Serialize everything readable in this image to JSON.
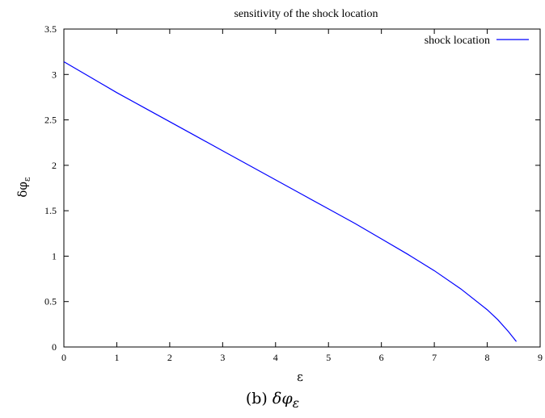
{
  "caption": {
    "label": "(b)",
    "symbol": "δφ",
    "subscript": "ε"
  },
  "chart_data": {
    "type": "line",
    "title": "sensitivity of the shock location",
    "xlabel": "ε",
    "ylabel": {
      "base": "δφ",
      "subscript": "ε"
    },
    "xlim": [
      0,
      9
    ],
    "ylim": [
      0,
      3.5
    ],
    "xticks": [
      "0",
      "1",
      "2",
      "3",
      "4",
      "5",
      "6",
      "7",
      "8",
      "9"
    ],
    "yticks": [
      "0",
      "0.5",
      "1",
      "1.5",
      "2",
      "2.5",
      "3",
      "3.5"
    ],
    "grid": false,
    "legend_position": "top-right",
    "series": [
      {
        "name": "shock location",
        "color": "#0000ff",
        "x": [
          0,
          0.5,
          1,
          1.5,
          2,
          2.5,
          3,
          3.5,
          4,
          4.5,
          5,
          5.5,
          6,
          6.5,
          7,
          7.5,
          8,
          8.2,
          8.4,
          8.55
        ],
        "y": [
          3.14,
          2.97,
          2.8,
          2.64,
          2.48,
          2.32,
          2.16,
          2.0,
          1.84,
          1.68,
          1.52,
          1.36,
          1.19,
          1.02,
          0.84,
          0.64,
          0.41,
          0.3,
          0.17,
          0.06
        ]
      }
    ]
  }
}
